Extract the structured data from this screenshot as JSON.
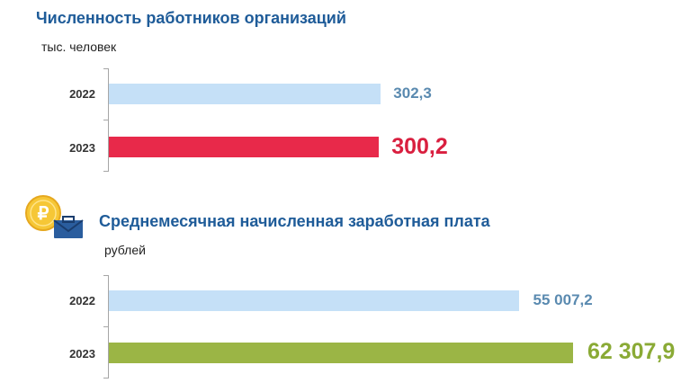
{
  "chart_data": [
    {
      "type": "bar",
      "orientation": "horizontal",
      "title": "Численность работников организаций",
      "unit_label": "тыс. человек",
      "categories": [
        "2022",
        "2023"
      ],
      "values": [
        302.3,
        300.2
      ],
      "value_labels": [
        "302,3",
        "300,2"
      ],
      "bar_colors": [
        "#c5e0f7",
        "#e8294a"
      ],
      "label_colors": [
        "#5a8ab0",
        "#d91f3f"
      ],
      "highlight_index": 1,
      "xlim": [
        0,
        370
      ]
    },
    {
      "type": "bar",
      "orientation": "horizontal",
      "title": "Среднемесячная начисленная заработная плата",
      "unit_label": "рублей",
      "categories": [
        "2022",
        "2023"
      ],
      "values": [
        55007.2,
        62307.9
      ],
      "value_labels": [
        "55 007,2",
        "62 307,9"
      ],
      "bar_colors": [
        "#c5e0f7",
        "#9bb545"
      ],
      "label_colors": [
        "#5a8ab0",
        "#8aaa35"
      ],
      "highlight_index": 1,
      "xlim": [
        0,
        62307.9
      ]
    }
  ],
  "icons": {
    "wage_icon": "ruble-coin-envelope-icon"
  }
}
